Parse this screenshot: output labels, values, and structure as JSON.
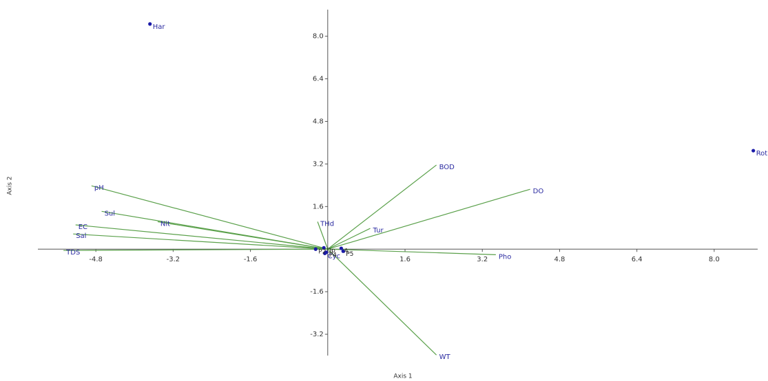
{
  "chart_data": {
    "type": "biplot",
    "xlabel": "Axis 1",
    "ylabel": "Axis 2",
    "xlim": [
      -6,
      8.9
    ],
    "ylim": [
      -4,
      9
    ],
    "xticks": [
      -4.8,
      -3.2,
      -1.6,
      1.6,
      3.2,
      4.8,
      6.4,
      {
        "value": 8,
        "label": "8.0"
      }
    ],
    "yticks": [
      -3.2,
      -1.6,
      1.6,
      3.2,
      4.8,
      6.4,
      {
        "value": 8,
        "label": "8.0"
      }
    ],
    "points": {
      "color": "#1a1aa8",
      "labels": [
        "Har",
        "Rot",
        "Cyc",
        "Dp",
        "A",
        "P2",
        "P4",
        "P5"
      ],
      "x": [
        -3.68,
        8.81,
        -0.06,
        -0.08,
        0.28,
        -0.25,
        -0.03,
        0.32
      ],
      "y": [
        8.46,
        3.7,
        -0.16,
        0.05,
        0.03,
        0.0,
        -0.12,
        -0.08
      ]
    },
    "vectors": {
      "color": "#5aa04a",
      "labels": [
        "pH",
        "Sul",
        "Nit",
        "EC",
        "Sal",
        "TDS",
        "THd",
        "Tur",
        "BOD",
        "DO",
        "Pho",
        "WT"
      ],
      "x": [
        -4.89,
        -4.68,
        -3.52,
        -5.22,
        -5.27,
        -5.47,
        -0.21,
        0.88,
        2.25,
        4.19,
        3.48,
        2.25
      ],
      "y": [
        2.38,
        1.42,
        1.03,
        0.91,
        0.57,
        -0.05,
        1.03,
        0.78,
        3.16,
        2.25,
        -0.21,
        -3.98
      ]
    }
  }
}
